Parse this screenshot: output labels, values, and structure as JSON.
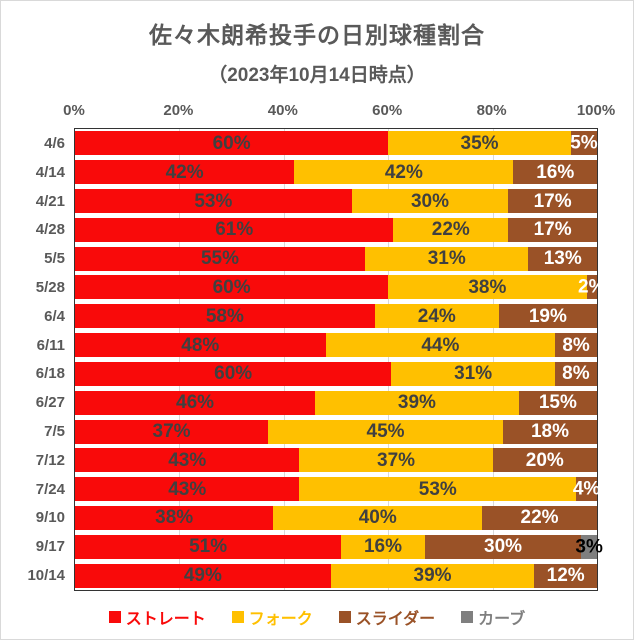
{
  "chart_data": {
    "type": "bar",
    "stacked": true,
    "orientation": "horizontal",
    "title": "佐々木朗希投手の日別球種割合",
    "subtitle": "（2023年10月14日時点）",
    "x_ticks": [
      "0%",
      "20%",
      "40%",
      "60%",
      "80%",
      "100%"
    ],
    "xlim": [
      0,
      100
    ],
    "grid": true,
    "legend_position": "bottom",
    "categories": [
      "4/6",
      "4/14",
      "4/21",
      "4/28",
      "5/5",
      "5/28",
      "6/4",
      "6/11",
      "6/18",
      "6/27",
      "7/5",
      "7/12",
      "7/24",
      "9/10",
      "9/17",
      "10/14"
    ],
    "series": [
      {
        "name": "ストレート",
        "color": "#F90A0A",
        "label_color": "#404040",
        "values": [
          60,
          42,
          53,
          61,
          55,
          60,
          58,
          48,
          60,
          46,
          37,
          43,
          43,
          38,
          51,
          49
        ]
      },
      {
        "name": "フォーク",
        "color": "#FFC000",
        "label_color": "#404040",
        "values": [
          35,
          42,
          30,
          22,
          31,
          38,
          24,
          44,
          31,
          39,
          45,
          37,
          53,
          40,
          16,
          39
        ]
      },
      {
        "name": "スライダー",
        "color": "#9A5227",
        "label_color": "#FFFFFF",
        "values": [
          5,
          16,
          17,
          17,
          13,
          2,
          19,
          8,
          8,
          15,
          18,
          20,
          4,
          22,
          30,
          12
        ]
      },
      {
        "name": "カーブ",
        "color": "#7F7F7F",
        "label_color": "#000000",
        "values": [
          0,
          0,
          0,
          0,
          0,
          0,
          0,
          0,
          0,
          0,
          0,
          0,
          0,
          0,
          3,
          0
        ]
      }
    ],
    "value_suffix": "%",
    "style": {
      "text_color": "#595959",
      "dark_label_color": "#404040",
      "gridline_color": "#D9D9D9",
      "plot_border_color": "#333333",
      "frame_border_color": "#D9D9D9"
    }
  }
}
